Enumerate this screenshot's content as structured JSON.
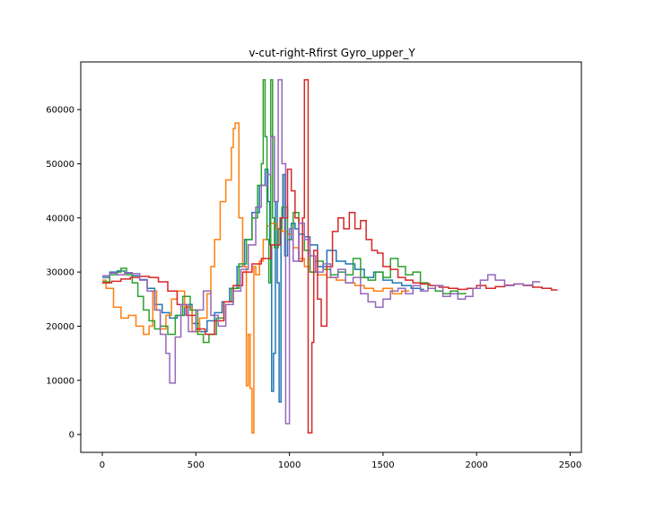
{
  "chart_data": {
    "type": "line",
    "title": "v-cut-right-Rfirst Gyro_upper_Y",
    "xlabel": "",
    "ylabel": "",
    "xlim": [
      -115,
      2560
    ],
    "ylim": [
      -3300,
      68800
    ],
    "xticks": [
      0,
      500,
      1000,
      1500,
      2000,
      2500
    ],
    "yticks": [
      0,
      10000,
      20000,
      30000,
      40000,
      50000,
      60000
    ],
    "grid": false,
    "legend": "none",
    "step": true,
    "series": [
      {
        "color": "#1f77b4",
        "x": [
          0,
          40,
          80,
          120,
          160,
          200,
          240,
          280,
          320,
          360,
          400,
          440,
          480,
          520,
          560,
          600,
          640,
          680,
          720,
          760,
          800,
          840,
          870,
          885,
          895,
          905,
          915,
          925,
          935,
          945,
          955,
          965,
          975,
          990,
          1010,
          1030,
          1050,
          1080,
          1110,
          1150,
          1200,
          1250,
          1300,
          1350,
          1400,
          1450,
          1500,
          1550,
          1600,
          1650,
          1700,
          1720
        ],
        "y": [
          29000,
          30000,
          30200,
          29800,
          29300,
          28600,
          27000,
          24000,
          22500,
          21500,
          22000,
          24000,
          20500,
          19000,
          21000,
          22500,
          24500,
          27000,
          31000,
          36000,
          41000,
          46000,
          49000,
          43000,
          35000,
          8000,
          15000,
          43000,
          28000,
          6000,
          40000,
          48000,
          33000,
          36000,
          39000,
          38000,
          37000,
          36500,
          35000,
          31000,
          34000,
          32000,
          31500,
          30500,
          29000,
          30000,
          28500,
          28000,
          27500,
          27000,
          26800,
          26800
        ]
      },
      {
        "color": "#ff7f0e",
        "x": [
          0,
          20,
          60,
          100,
          140,
          180,
          220,
          250,
          270,
          290,
          310,
          340,
          370,
          400,
          440,
          480,
          520,
          560,
          580,
          600,
          630,
          660,
          690,
          700,
          710,
          720,
          730,
          750,
          770,
          780,
          790,
          800,
          810,
          820,
          840,
          860,
          880,
          900,
          930,
          960,
          990,
          1020,
          1050,
          1080,
          1110,
          1150,
          1200,
          1250,
          1300,
          1350,
          1400,
          1450,
          1500,
          1550,
          1600,
          1640
        ],
        "y": [
          28500,
          27000,
          23500,
          21500,
          22000,
          20000,
          18500,
          20000,
          26500,
          23000,
          19500,
          22000,
          25000,
          26500,
          23500,
          19000,
          21500,
          26000,
          31000,
          36000,
          43000,
          47000,
          53000,
          56500,
          57500,
          57500,
          40000,
          31000,
          9000,
          18500,
          8500,
          300,
          31000,
          29500,
          32000,
          36000,
          38500,
          39000,
          38000,
          37500,
          37000,
          34500,
          32500,
          31000,
          30000,
          29500,
          29000,
          28500,
          28000,
          27500,
          27000,
          26500,
          27000,
          26000,
          26500,
          26500
        ]
      },
      {
        "color": "#2ca02c",
        "x": [
          0,
          40,
          80,
          100,
          130,
          160,
          190,
          220,
          250,
          280,
          310,
          350,
          390,
          430,
          470,
          510,
          540,
          570,
          610,
          650,
          690,
          730,
          770,
          800,
          830,
          850,
          860,
          870,
          880,
          890,
          900,
          910,
          920,
          940,
          960,
          990,
          1020,
          1050,
          1080,
          1110,
          1140,
          1180,
          1220,
          1260,
          1300,
          1340,
          1380,
          1420,
          1460,
          1500,
          1540,
          1580,
          1620,
          1660,
          1700,
          1740,
          1780,
          1820,
          1860,
          1900,
          1940
        ],
        "y": [
          28200,
          29500,
          30000,
          30700,
          29500,
          28000,
          25500,
          23000,
          21000,
          19500,
          20000,
          18500,
          22000,
          25500,
          23000,
          18500,
          17000,
          18500,
          21500,
          24500,
          27000,
          31500,
          36000,
          40000,
          46000,
          50000,
          65500,
          55000,
          36000,
          28000,
          65500,
          40000,
          34500,
          38000,
          42000,
          36000,
          41000,
          39000,
          34000,
          30000,
          32000,
          30500,
          29500,
          30000,
          29500,
          32500,
          29000,
          28500,
          30000,
          29000,
          32500,
          31000,
          29500,
          30000,
          28000,
          27000,
          26500,
          26000,
          26500,
          26000,
          26200
        ]
      },
      {
        "color": "#d62728",
        "x": [
          0,
          50,
          100,
          150,
          200,
          250,
          300,
          350,
          400,
          450,
          500,
          550,
          600,
          650,
          700,
          750,
          800,
          850,
          900,
          950,
          990,
          1010,
          1030,
          1050,
          1070,
          1080,
          1100,
          1110,
          1120,
          1130,
          1150,
          1170,
          1200,
          1230,
          1260,
          1290,
          1320,
          1350,
          1380,
          1410,
          1440,
          1470,
          1500,
          1540,
          1580,
          1620,
          1660,
          1700,
          1750,
          1800,
          1850,
          1900,
          1950,
          2000,
          2050,
          2100,
          2150,
          2200,
          2250,
          2300,
          2350,
          2400,
          2430
        ],
        "y": [
          28000,
          28300,
          28700,
          29000,
          29200,
          29000,
          28200,
          26500,
          24000,
          22000,
          19500,
          18500,
          21000,
          24500,
          27500,
          30000,
          31500,
          32500,
          35000,
          40000,
          49000,
          45000,
          40000,
          32000,
          40000,
          65500,
          300,
          300,
          17000,
          34000,
          25000,
          20000,
          31000,
          37500,
          40000,
          38000,
          41000,
          38000,
          39500,
          36000,
          34000,
          33500,
          31000,
          30500,
          29000,
          28500,
          28000,
          27800,
          27500,
          27200,
          27000,
          26800,
          27000,
          27500,
          27000,
          27300,
          27600,
          27800,
          27500,
          27200,
          27000,
          26700,
          26800
        ]
      },
      {
        "color": "#9467bd",
        "x": [
          0,
          40,
          80,
          120,
          160,
          200,
          240,
          280,
          310,
          340,
          360,
          390,
          420,
          460,
          500,
          540,
          580,
          620,
          660,
          700,
          740,
          780,
          820,
          850,
          880,
          900,
          920,
          940,
          960,
          980,
          1000,
          1020,
          1050,
          1080,
          1110,
          1140,
          1180,
          1220,
          1260,
          1300,
          1340,
          1380,
          1420,
          1460,
          1500,
          1540,
          1580,
          1620,
          1660,
          1700,
          1740,
          1780,
          1820,
          1860,
          1900,
          1940,
          1980,
          2020,
          2060,
          2100,
          2150,
          2200,
          2250,
          2300,
          2340
        ],
        "y": [
          29300,
          29800,
          29500,
          29900,
          29700,
          28500,
          26500,
          23000,
          18500,
          15000,
          9500,
          18000,
          24000,
          19000,
          23000,
          26500,
          22000,
          20000,
          24000,
          26500,
          30500,
          35000,
          42000,
          46000,
          48000,
          55000,
          43000,
          65500,
          50000,
          2000,
          38000,
          32000,
          39000,
          36000,
          33000,
          30000,
          31500,
          29000,
          30500,
          28000,
          29000,
          26000,
          24500,
          23500,
          25000,
          26500,
          27000,
          26000,
          27500,
          26500,
          27000,
          27500,
          25500,
          26000,
          25000,
          25500,
          27000,
          28500,
          29500,
          28500,
          27500,
          27800,
          27600,
          28200,
          28200
        ]
      }
    ]
  }
}
